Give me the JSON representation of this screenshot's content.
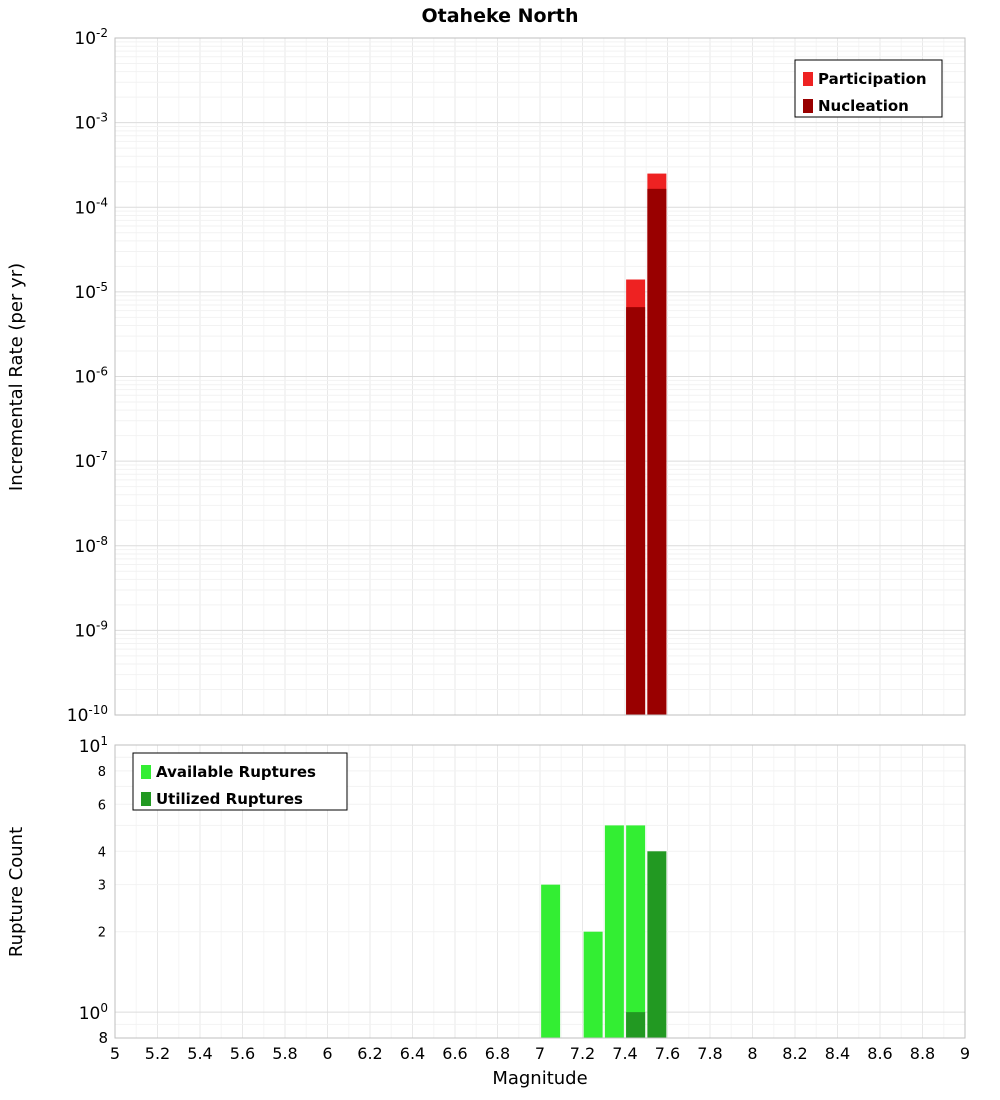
{
  "title": "Otaheke North",
  "x_axis": {
    "label": "Magnitude",
    "min": 5,
    "max": 9,
    "ticks": [
      "5",
      "5.2",
      "5.4",
      "5.6",
      "5.8",
      "6",
      "6.2",
      "6.4",
      "6.6",
      "6.8",
      "7",
      "7.2",
      "7.4",
      "7.6",
      "7.8",
      "8",
      "8.2",
      "8.4",
      "8.6",
      "8.8",
      "9"
    ]
  },
  "chart_data": [
    {
      "type": "bar",
      "panel": "incremental-rate",
      "ylabel": "Incremental Rate (per yr)",
      "yscale": "log",
      "ylim": [
        1e-10,
        0.01
      ],
      "y_tick_exponents": [
        -2,
        -3,
        -4,
        -5,
        -6,
        -7,
        -8,
        -9,
        -10
      ],
      "xlim": [
        5,
        9
      ],
      "bin_width": 0.1,
      "grid": true,
      "legend_position": "top-right",
      "series": [
        {
          "name": "Participation",
          "color": "#ee2222",
          "x": [
            7.45,
            7.55
          ],
          "values": [
            1.4e-05,
            0.00025
          ]
        },
        {
          "name": "Nucleation",
          "color": "#990000",
          "x": [
            7.45,
            7.55
          ],
          "values": [
            6.6e-06,
            0.000165
          ]
        }
      ]
    },
    {
      "type": "bar",
      "panel": "rupture-count",
      "ylabel": "Rupture Count",
      "yscale": "log",
      "ylim": [
        0.8,
        10
      ],
      "y_ticks": [
        10,
        8,
        6,
        4,
        3,
        2,
        1,
        0.8
      ],
      "xlim": [
        5,
        9
      ],
      "bin_width": 0.1,
      "grid": true,
      "legend_position": "top-left",
      "series": [
        {
          "name": "Available Ruptures",
          "color": "#33ee33",
          "x": [
            7.05,
            7.25,
            7.35,
            7.45
          ],
          "values": [
            3,
            2,
            5,
            5
          ]
        },
        {
          "name": "Utilized Ruptures",
          "color": "#229922",
          "x": [
            7.45,
            7.55
          ],
          "values": [
            1,
            4
          ]
        }
      ]
    }
  ]
}
